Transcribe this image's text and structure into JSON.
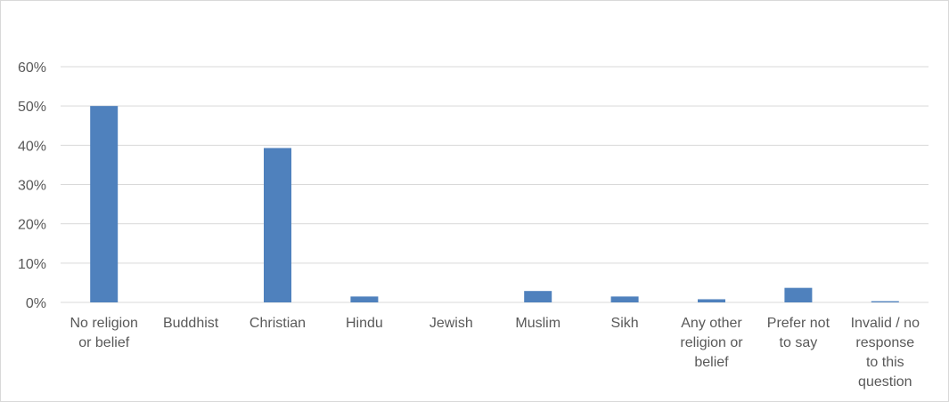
{
  "chart_data": {
    "type": "bar",
    "categories": [
      [
        "No religion",
        "or belief"
      ],
      [
        "Buddhist"
      ],
      [
        "Christian"
      ],
      [
        "Hindu"
      ],
      [
        "Jewish"
      ],
      [
        "Muslim"
      ],
      [
        "Sikh"
      ],
      [
        "Any other",
        "religion or",
        "belief"
      ],
      [
        "Prefer not",
        "to say"
      ],
      [
        "Invalid / no",
        "response",
        "to this",
        "question"
      ]
    ],
    "values": [
      50.0,
      0.0,
      39.3,
      1.5,
      0.0,
      2.9,
      1.5,
      0.8,
      3.7,
      0.3
    ],
    "ylim": [
      0,
      60
    ],
    "yticks": [
      "0%",
      "10%",
      "20%",
      "30%",
      "40%",
      "50%",
      "60%"
    ],
    "bar_color": "#4f81bd",
    "grid": true,
    "legend": "none"
  }
}
